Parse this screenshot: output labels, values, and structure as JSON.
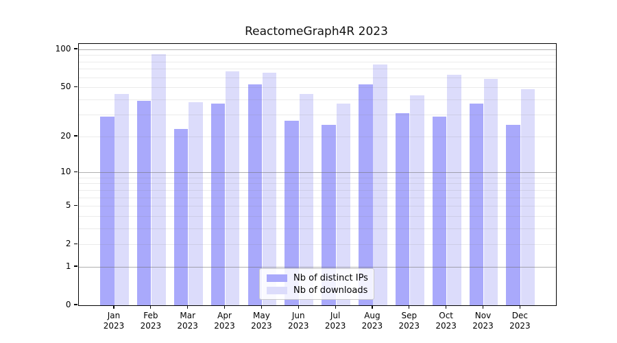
{
  "chart_data": {
    "type": "bar",
    "title": "ReactomeGraph4R 2023",
    "months": [
      "Jan",
      "Feb",
      "Mar",
      "Apr",
      "May",
      "Jun",
      "Jul",
      "Aug",
      "Sep",
      "Oct",
      "Nov",
      "Dec"
    ],
    "year": "2023",
    "categories": [
      "Jan 2023",
      "Feb 2023",
      "Mar 2023",
      "Apr 2023",
      "May 2023",
      "Jun 2023",
      "Jul 2023",
      "Aug 2023",
      "Sep 2023",
      "Oct 2023",
      "Nov 2023",
      "Dec 2023"
    ],
    "series": [
      {
        "name": "Nb of distinct IPs",
        "color": "#a9a9fb",
        "values": [
          29,
          39,
          23,
          37,
          53,
          27,
          25,
          53,
          31,
          29,
          37,
          25
        ]
      },
      {
        "name": "Nb of downloads",
        "color": "#dcdcfb",
        "values": [
          44,
          92,
          38,
          67,
          65,
          44,
          37,
          76,
          43,
          63,
          58,
          48
        ]
      }
    ],
    "y_scale": "log1p",
    "ylim": [
      0,
      100
    ],
    "y_ticks": [
      0,
      1,
      2,
      5,
      10,
      20,
      50,
      100
    ],
    "minor_grid_values": [
      2,
      3,
      4,
      5,
      6,
      7,
      8,
      9,
      20,
      30,
      40,
      50,
      60,
      70,
      80,
      90
    ],
    "major_grid_values": [
      1,
      10,
      100
    ],
    "grid": "on",
    "legend_position": "inside-bottom-center"
  },
  "colors": {
    "distinct_ips_bar": "#a9a9fb",
    "downloads_bar": "#dcdcfb",
    "major_gridline": "#b3b3b3",
    "minor_gridline": "#ececec",
    "spine": "#000000",
    "background": "#ffffff"
  }
}
